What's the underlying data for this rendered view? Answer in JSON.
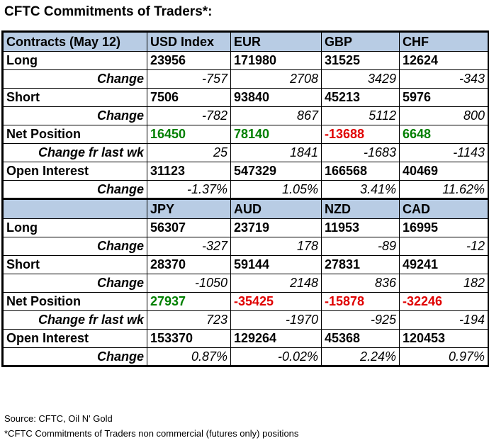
{
  "title": "CFTC Commitments of Traders*:",
  "table1": {
    "header": [
      "Contracts (May 12)",
      "USD Index",
      "EUR",
      "GBP",
      "CHF"
    ],
    "long": {
      "label": "Long",
      "values": [
        "23956",
        "171980",
        "31525",
        "12624"
      ]
    },
    "long_change": {
      "label": "Change",
      "values": [
        "-757",
        "2708",
        "3429",
        "-343"
      ]
    },
    "short": {
      "label": "Short",
      "values": [
        "7506",
        "93840",
        "45213",
        "5976"
      ]
    },
    "short_change": {
      "label": "Change",
      "values": [
        "-782",
        "867",
        "5112",
        "800"
      ]
    },
    "net": {
      "label": "Net Position",
      "values": [
        "16450",
        "78140",
        "-13688",
        "6648"
      ],
      "colors": [
        "#008000",
        "#008000",
        "#e00000",
        "#008000"
      ]
    },
    "net_change": {
      "label": "Change fr last wk",
      "values": [
        "25",
        "1841",
        "-1683",
        "-1143"
      ]
    },
    "oi": {
      "label": "Open Interest",
      "values": [
        "31123",
        "547329",
        "166568",
        "40469"
      ]
    },
    "oi_change": {
      "label": "Change",
      "values": [
        "-1.37%",
        "1.05%",
        "3.41%",
        "11.62%"
      ]
    }
  },
  "table2": {
    "header": [
      "",
      "JPY",
      "AUD",
      "NZD",
      "CAD"
    ],
    "long": {
      "label": "Long",
      "values": [
        "56307",
        "23719",
        "11953",
        "16995"
      ]
    },
    "long_change": {
      "label": "Change",
      "values": [
        "-327",
        "178",
        "-89",
        "-12"
      ]
    },
    "short": {
      "label": "Short",
      "values": [
        "28370",
        "59144",
        "27831",
        "49241"
      ]
    },
    "short_change": {
      "label": "Change",
      "values": [
        "-1050",
        "2148",
        "836",
        "182"
      ]
    },
    "net": {
      "label": "Net Position",
      "values": [
        "27937",
        "-35425",
        "-15878",
        "-32246"
      ],
      "colors": [
        "#008000",
        "#e00000",
        "#e00000",
        "#e00000"
      ]
    },
    "net_change": {
      "label": "Change fr last wk",
      "values": [
        "723",
        "-1970",
        "-925",
        "-194"
      ]
    },
    "oi": {
      "label": "Open Interest",
      "values": [
        "153370",
        "129264",
        "45368",
        "120453"
      ]
    },
    "oi_change": {
      "label": "Change",
      "values": [
        "0.87%",
        "-0.02%",
        "2.24%",
        "0.97%"
      ]
    }
  },
  "notes": {
    "source": "Source: CFTC, Oil N' Gold",
    "footnote": "*CFTC Commitments of Traders non commercial (futures only) positions"
  }
}
